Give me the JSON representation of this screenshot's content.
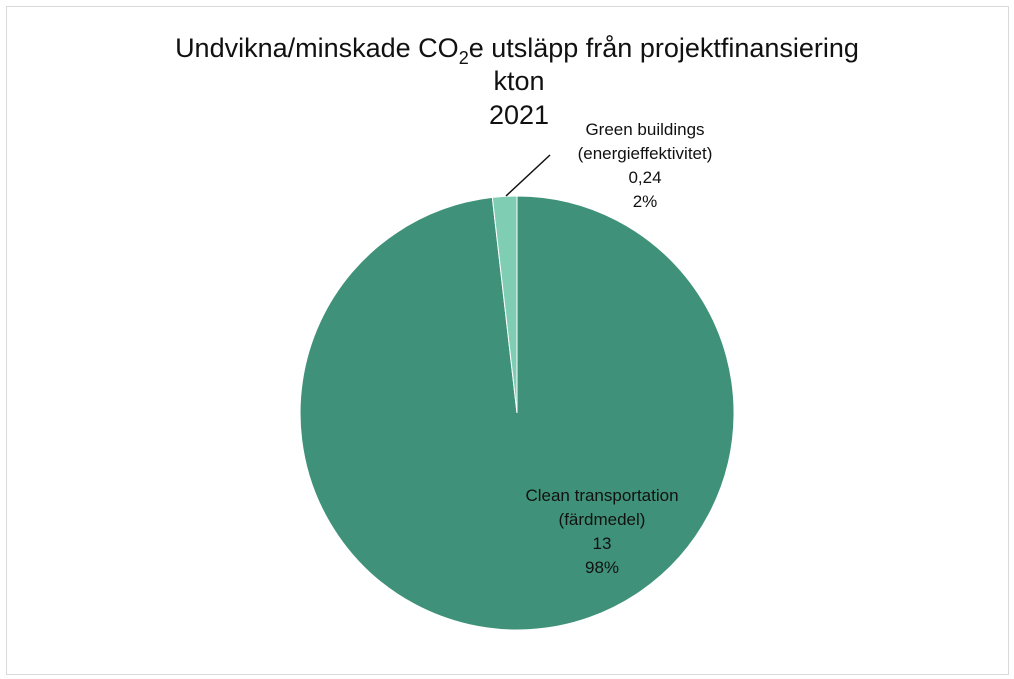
{
  "chart_data": {
    "type": "pie",
    "title_prefix": "Undvikna/minskade CO",
    "title_subscript": "2",
    "title_suffix": "e utsläpp från projektfinansiering",
    "title_line2": "kton",
    "title_line3": "2021",
    "slices": [
      {
        "label_line1": "Clean transportation",
        "label_line2": "(färdmedel)",
        "value_text": "13",
        "percent_text": "98%",
        "value": 13,
        "color": "#3f9279"
      },
      {
        "label_line1": "Green buildings",
        "label_line2": "(energieffektivitet)",
        "value_text": "0,24",
        "percent_text": "2%",
        "value": 0.24,
        "color": "#7fcdb2"
      }
    ]
  }
}
